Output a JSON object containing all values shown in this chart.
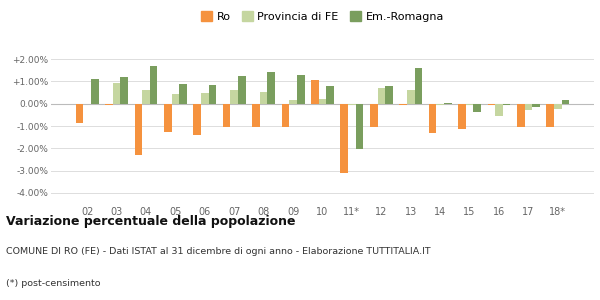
{
  "years": [
    "02",
    "03",
    "04",
    "05",
    "06",
    "07",
    "08",
    "09",
    "10",
    "11*",
    "12",
    "13",
    "14",
    "15",
    "16",
    "17",
    "18*"
  ],
  "ro": [
    -0.85,
    -0.05,
    -2.3,
    -1.25,
    -1.4,
    -1.05,
    -1.05,
    -1.05,
    1.05,
    -3.1,
    -1.05,
    -0.05,
    -1.3,
    -1.15,
    -0.05,
    -1.05,
    -1.05
  ],
  "provincia_fe": [
    0.0,
    0.93,
    0.63,
    0.43,
    0.5,
    0.63,
    0.53,
    0.15,
    0.22,
    -0.05,
    0.7,
    0.63,
    -0.05,
    -0.05,
    -0.57,
    -0.28,
    -0.22
  ],
  "em_romagna": [
    1.1,
    1.2,
    1.7,
    0.88,
    0.83,
    1.23,
    1.43,
    1.28,
    0.78,
    -2.05,
    0.78,
    1.6,
    0.05,
    -0.38,
    -0.08,
    -0.13,
    0.15
  ],
  "color_ro": "#f5923e",
  "color_pfe": "#c5d6a0",
  "color_emr": "#7a9e5e",
  "title": "Variazione percentuale della popolazione",
  "subtitle": "COMUNE DI RO (FE) - Dati ISTAT al 31 dicembre di ogni anno - Elaborazione TUTTITALIA.IT",
  "footnote": "(*) post-censimento",
  "bg_color": "#ffffff",
  "grid_color": "#dddddd",
  "ylim": [
    -4.5,
    2.5
  ],
  "yticks": [
    -4.0,
    -3.0,
    -2.0,
    -1.0,
    0.0,
    1.0,
    2.0
  ],
  "ytick_labels": [
    "-4.00%",
    "-3.00%",
    "-2.00%",
    "-1.00%",
    "0.00%",
    "+1.00%",
    "+2.00%"
  ]
}
